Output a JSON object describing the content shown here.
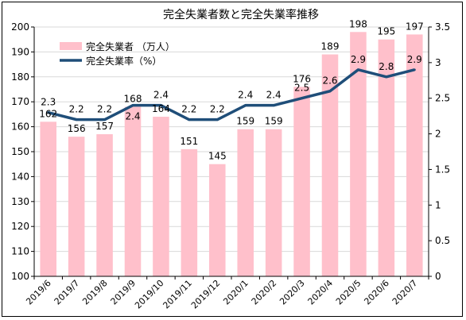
{
  "chart_data": {
    "type": "bar+line",
    "title": "完全失業者数と完全失業率推移",
    "categories": [
      "2019/6",
      "2019/7",
      "2019/8",
      "2019/9",
      "2019/10",
      "2019/11",
      "2019/12",
      "2020/1",
      "2020/2",
      "2020/3",
      "2020/4",
      "2020/5",
      "2020/6",
      "2020/7"
    ],
    "series": [
      {
        "name": "完全失業者 （万人）",
        "type": "bar",
        "axis": "left",
        "color": "#ffc0cb",
        "values": [
          162,
          156,
          157,
          168,
          164,
          151,
          145,
          159,
          159,
          176,
          189,
          198,
          195,
          197
        ]
      },
      {
        "name": "完全失業率（%）",
        "type": "line",
        "axis": "right",
        "color": "#1f4e79",
        "values": [
          2.3,
          2.2,
          2.2,
          2.4,
          2.4,
          2.2,
          2.2,
          2.4,
          2.4,
          2.5,
          2.6,
          2.9,
          2.8,
          2.9
        ]
      }
    ],
    "bar_labels": [
      "162",
      "156",
      "157",
      "168",
      "164",
      "151",
      "145",
      "159",
      "159",
      "176",
      "189",
      "198",
      "195",
      "197"
    ],
    "line_labels": [
      "2.3",
      "2.2",
      "2.2",
      "2.4",
      "2.4",
      "2.2",
      "2.2",
      "2.4",
      "2.4",
      "2.5",
      "2.6",
      "2.9",
      "2.8",
      "2.9"
    ],
    "y_left": {
      "min": 100,
      "max": 200,
      "step": 10,
      "ticks": [
        "100",
        "110",
        "120",
        "130",
        "140",
        "150",
        "160",
        "170",
        "180",
        "190",
        "200"
      ]
    },
    "y_right": {
      "min": 0,
      "max": 3.5,
      "step": 0.5,
      "ticks": [
        "0",
        "0.5",
        "1",
        "1.5",
        "2",
        "2.5",
        "3",
        "3.5"
      ]
    },
    "grid": "horizontal",
    "legend_position": "top-left"
  }
}
